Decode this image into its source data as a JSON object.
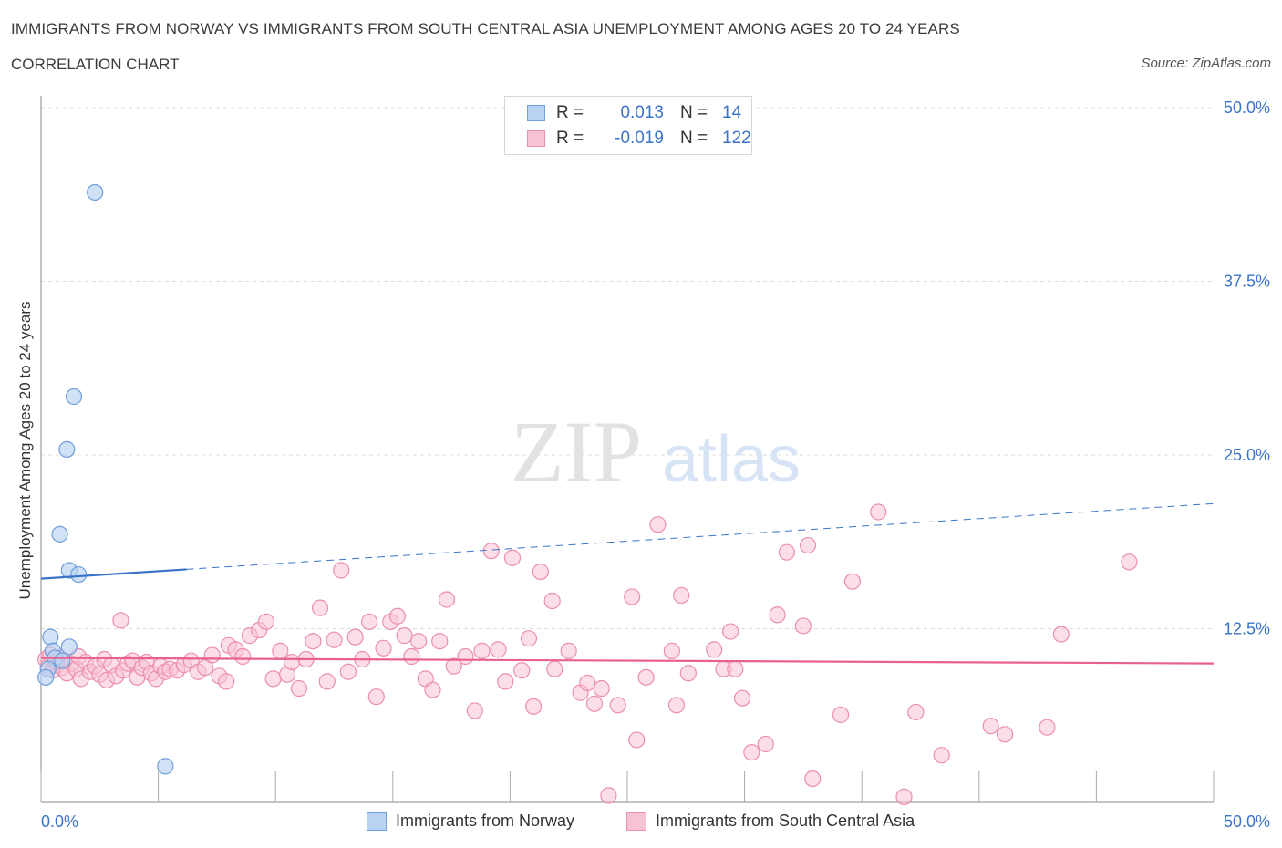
{
  "header": {
    "title": "IMMIGRANTS FROM NORWAY VS IMMIGRANTS FROM SOUTH CENTRAL ASIA UNEMPLOYMENT AMONG AGES 20 TO 24 YEARS",
    "subtitle": "CORRELATION CHART",
    "source": "Source: ZipAtlas.com"
  },
  "watermark": {
    "zip": "ZIP",
    "atlas": "atlas"
  },
  "legend": {
    "rows": [
      {
        "r_label": "R =",
        "r_value": "0.013",
        "n_label": "N =",
        "n_value": "14"
      },
      {
        "r_label": "R =",
        "r_value": "-0.019",
        "n_label": "N =",
        "n_value": "122"
      }
    ]
  },
  "colors": {
    "norway_fill": "#b8d2f2",
    "norway_stroke": "#6f9fdc",
    "norway_line": "#3a74c9",
    "sca_fill": "#f7c3d3",
    "sca_stroke": "#ec8fac",
    "sca_line": "#e8608c",
    "tick_label": "#3a74c9",
    "grid": "#dcdcdc"
  },
  "chart_data": {
    "type": "scatter",
    "title": "IMMIGRANTS FROM NORWAY VS IMMIGRANTS FROM SOUTH CENTRAL ASIA UNEMPLOYMENT AMONG AGES 20 TO 24 YEARS",
    "xlabel": "",
    "ylabel": "Unemployment Among Ages 20 to 24 years",
    "xlim": [
      0,
      50
    ],
    "ylim": [
      0,
      50
    ],
    "x_tick_labels": [
      "0.0%",
      "50.0%"
    ],
    "y_ticks": [
      12.5,
      25.0,
      37.5,
      50.0
    ],
    "y_tick_labels": [
      "12.5%",
      "25.0%",
      "37.5%",
      "50.0%"
    ],
    "grid": true,
    "series": [
      {
        "name": "Immigrants from Norway",
        "R": 0.013,
        "N": 14,
        "trend": {
          "solid_x": [
            0,
            6.2
          ],
          "dashed_x": [
            6.2,
            50
          ],
          "y0": 16.1,
          "y1": 21.5
        },
        "points": [
          [
            2.3,
            43.9
          ],
          [
            1.4,
            29.2
          ],
          [
            1.1,
            25.4
          ],
          [
            0.8,
            19.3
          ],
          [
            1.2,
            16.7
          ],
          [
            1.6,
            16.4
          ],
          [
            0.4,
            11.9
          ],
          [
            1.2,
            11.2
          ],
          [
            0.5,
            10.9
          ],
          [
            0.6,
            10.4
          ],
          [
            0.9,
            10.2
          ],
          [
            0.3,
            9.6
          ],
          [
            0.2,
            9.0
          ],
          [
            5.3,
            2.6
          ]
        ]
      },
      {
        "name": "Immigrants from South Central Asia",
        "R": -0.019,
        "N": 122,
        "trend": {
          "x": [
            0,
            50
          ],
          "y0": 10.4,
          "y1": 10.0
        },
        "points": [
          [
            0.2,
            10.3
          ],
          [
            0.3,
            9.8
          ],
          [
            0.4,
            10.6
          ],
          [
            0.5,
            9.5
          ],
          [
            0.6,
            10.1
          ],
          [
            0.7,
            9.9
          ],
          [
            0.8,
            10.4
          ],
          [
            0.9,
            9.7
          ],
          [
            1.0,
            10.2
          ],
          [
            1.1,
            9.3
          ],
          [
            1.3,
            10.0
          ],
          [
            1.5,
            9.6
          ],
          [
            1.6,
            10.5
          ],
          [
            1.7,
            8.9
          ],
          [
            1.9,
            10.1
          ],
          [
            2.1,
            9.4
          ],
          [
            2.3,
            9.8
          ],
          [
            2.5,
            9.2
          ],
          [
            2.7,
            10.3
          ],
          [
            2.8,
            8.8
          ],
          [
            3.0,
            9.9
          ],
          [
            3.2,
            9.1
          ],
          [
            3.4,
            13.1
          ],
          [
            3.5,
            9.5
          ],
          [
            3.7,
            10.0
          ],
          [
            3.9,
            10.2
          ],
          [
            4.1,
            9.0
          ],
          [
            4.3,
            9.7
          ],
          [
            4.5,
            10.1
          ],
          [
            4.7,
            9.3
          ],
          [
            4.9,
            8.9
          ],
          [
            5.1,
            9.8
          ],
          [
            5.3,
            9.4
          ],
          [
            5.5,
            9.6
          ],
          [
            5.8,
            9.5
          ],
          [
            6.1,
            9.9
          ],
          [
            6.4,
            10.2
          ],
          [
            6.7,
            9.4
          ],
          [
            7.0,
            9.7
          ],
          [
            7.3,
            10.6
          ],
          [
            7.6,
            9.1
          ],
          [
            7.9,
            8.7
          ],
          [
            8.0,
            11.3
          ],
          [
            8.3,
            11.0
          ],
          [
            8.6,
            10.5
          ],
          [
            8.9,
            12.0
          ],
          [
            9.3,
            12.4
          ],
          [
            9.6,
            13.0
          ],
          [
            9.9,
            8.9
          ],
          [
            10.2,
            10.9
          ],
          [
            10.5,
            9.2
          ],
          [
            10.7,
            10.1
          ],
          [
            11.0,
            8.2
          ],
          [
            11.3,
            10.3
          ],
          [
            11.6,
            11.6
          ],
          [
            11.9,
            14.0
          ],
          [
            12.2,
            8.7
          ],
          [
            12.5,
            11.7
          ],
          [
            12.8,
            16.7
          ],
          [
            13.1,
            9.4
          ],
          [
            13.4,
            11.9
          ],
          [
            13.7,
            10.3
          ],
          [
            14.0,
            13.0
          ],
          [
            14.3,
            7.6
          ],
          [
            14.6,
            11.1
          ],
          [
            14.9,
            13.0
          ],
          [
            15.2,
            13.4
          ],
          [
            15.5,
            12.0
          ],
          [
            15.8,
            10.5
          ],
          [
            16.1,
            11.6
          ],
          [
            16.4,
            8.9
          ],
          [
            16.7,
            8.1
          ],
          [
            17.0,
            11.6
          ],
          [
            17.3,
            14.6
          ],
          [
            17.6,
            9.8
          ],
          [
            18.1,
            10.5
          ],
          [
            18.5,
            6.6
          ],
          [
            18.8,
            10.9
          ],
          [
            19.2,
            18.1
          ],
          [
            19.5,
            11.0
          ],
          [
            19.8,
            8.7
          ],
          [
            20.1,
            17.6
          ],
          [
            20.5,
            9.5
          ],
          [
            20.8,
            11.8
          ],
          [
            21.0,
            6.9
          ],
          [
            21.3,
            16.6
          ],
          [
            21.8,
            14.5
          ],
          [
            21.9,
            9.6
          ],
          [
            22.5,
            10.9
          ],
          [
            23.0,
            7.9
          ],
          [
            23.3,
            8.6
          ],
          [
            23.6,
            7.1
          ],
          [
            23.9,
            8.2
          ],
          [
            24.2,
            0.5
          ],
          [
            24.6,
            7.0
          ],
          [
            25.2,
            14.8
          ],
          [
            25.4,
            4.5
          ],
          [
            25.8,
            9.0
          ],
          [
            26.3,
            20.0
          ],
          [
            26.9,
            10.9
          ],
          [
            27.1,
            7.0
          ],
          [
            27.3,
            14.9
          ],
          [
            27.6,
            9.3
          ],
          [
            28.7,
            11.0
          ],
          [
            29.1,
            9.6
          ],
          [
            29.4,
            12.3
          ],
          [
            29.6,
            9.6
          ],
          [
            29.9,
            7.5
          ],
          [
            30.3,
            3.6
          ],
          [
            30.9,
            4.2
          ],
          [
            31.4,
            13.5
          ],
          [
            31.8,
            18.0
          ],
          [
            32.5,
            12.7
          ],
          [
            32.7,
            18.5
          ],
          [
            32.9,
            1.7
          ],
          [
            34.1,
            6.3
          ],
          [
            34.6,
            15.9
          ],
          [
            35.7,
            20.9
          ],
          [
            36.8,
            0.4
          ],
          [
            37.3,
            6.5
          ],
          [
            38.4,
            3.4
          ],
          [
            40.5,
            5.5
          ],
          [
            41.1,
            4.9
          ],
          [
            42.9,
            5.4
          ],
          [
            43.5,
            12.1
          ],
          [
            46.4,
            17.3
          ]
        ]
      }
    ]
  },
  "bottom_legend": {
    "norway_label": "Immigrants from Norway",
    "sca_label": "Immigrants from South Central Asia"
  }
}
